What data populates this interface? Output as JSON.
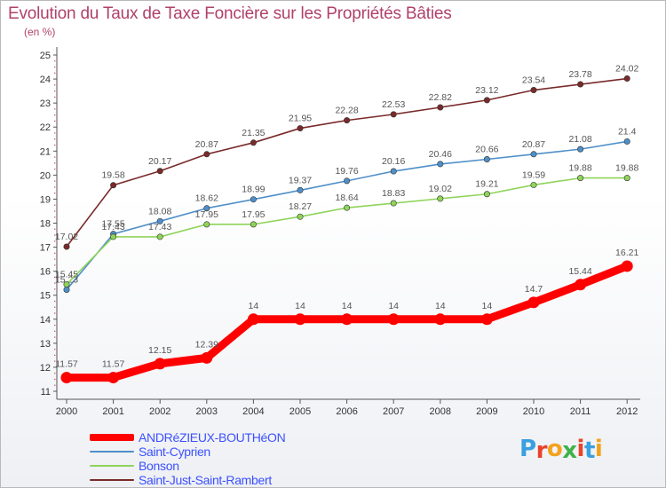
{
  "title": "Evolution du Taux de Taxe Foncière sur les Propriétés Bâties",
  "unit": "(en %)",
  "logo": {
    "text": "Proxiti",
    "letter_colors": [
      "#3aa0e0",
      "#e8432a",
      "#f3a21d",
      "#3fb249",
      "#e8432a",
      "#3aa0e0",
      "#f3a21d"
    ]
  },
  "chart_data": {
    "type": "line",
    "title": "Evolution du Taux de Taxe Foncière sur les Propriétés Bâties",
    "ylabel": "(en %)",
    "x": [
      "2000",
      "2001",
      "2002",
      "2003",
      "2004",
      "2005",
      "2006",
      "2007",
      "2008",
      "2009",
      "2010",
      "2011",
      "2012"
    ],
    "yticks": [
      "11",
      "12",
      "13",
      "14",
      "15",
      "16",
      "17",
      "18",
      "19",
      "20",
      "21",
      "22",
      "23",
      "24",
      "25"
    ],
    "ylim": [
      11,
      25
    ],
    "grid": false,
    "legend_position": "bottom-left",
    "series": [
      {
        "name": "ANDRéZIEUX-BOUTHéON",
        "color": "#ff0000",
        "values": [
          11.57,
          11.57,
          12.15,
          12.39,
          14,
          14,
          14,
          14,
          14,
          14,
          14.7,
          15.44,
          16.21
        ],
        "labels": [
          "11.57",
          "11.57",
          "12.15",
          "12.39",
          "14",
          "14",
          "14",
          "14",
          "14",
          "14",
          "14.7",
          "15.44",
          "16.21"
        ]
      },
      {
        "name": "Saint-Cyprien",
        "color": "#4f8fc8",
        "values": [
          15.23,
          17.55,
          18.08,
          18.62,
          18.99,
          19.37,
          19.76,
          20.16,
          20.46,
          20.66,
          20.87,
          21.08,
          21.4
        ],
        "labels": [
          "15.23",
          "17.55",
          "18.08",
          "18.62",
          "18.99",
          "19.37",
          "19.76",
          "20.16",
          "20.46",
          "20.66",
          "20.87",
          "21.08",
          "21.4"
        ]
      },
      {
        "name": "Bonson",
        "color": "#8fd45a",
        "values": [
          15.45,
          17.43,
          17.43,
          17.95,
          17.95,
          18.27,
          18.64,
          18.83,
          19.02,
          19.21,
          19.59,
          19.88,
          19.88
        ],
        "labels": [
          "15.45",
          "17.43",
          "17.43",
          "17.95",
          "17.95",
          "18.27",
          "18.64",
          "18.83",
          "19.02",
          "19.21",
          "19.59",
          "19.88",
          "19.88"
        ]
      },
      {
        "name": "Saint-Just-Saint-Rambert",
        "color": "#7a2a2a",
        "values": [
          17.02,
          19.58,
          20.17,
          20.87,
          21.35,
          21.95,
          22.28,
          22.53,
          22.82,
          23.12,
          23.54,
          23.78,
          24.02
        ],
        "labels": [
          "17.02",
          "19.58",
          "20.17",
          "20.87",
          "21.35",
          "21.95",
          "22.28",
          "22.53",
          "22.82",
          "23.12",
          "23.54",
          "23.78",
          "24.02"
        ]
      }
    ]
  }
}
